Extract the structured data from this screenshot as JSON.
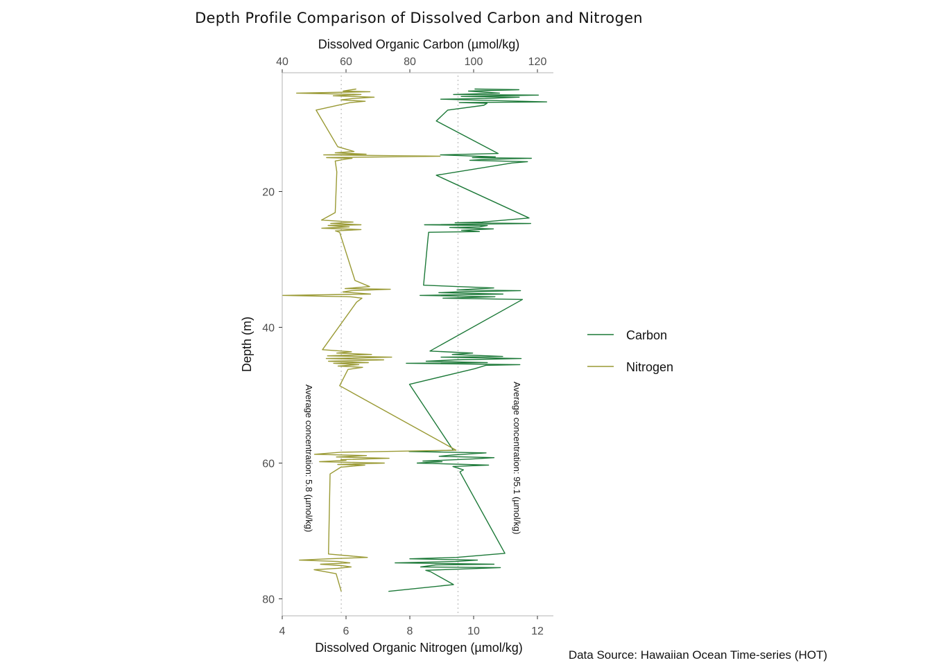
{
  "chart_data": {
    "type": "line",
    "title": "Depth Profile Comparison of Dissolved Carbon and Nitrogen",
    "ylabel": "Depth (m)",
    "xlabel_top": "Dissolved Organic Carbon (µmol/kg)",
    "xlabel_bottom": "Dissolved Organic Nitrogen (µmol/kg)",
    "caption": "Data Source: Hawaiian Ocean Time-series (HOT)",
    "y_reversed": true,
    "ylim": [
      2.5,
      82.5
    ],
    "yticks": [
      20,
      40,
      60,
      80
    ],
    "x_top_lim": [
      40,
      125
    ],
    "x_top_ticks": [
      40,
      60,
      80,
      100,
      120
    ],
    "x_bottom_lim": [
      4,
      12.5
    ],
    "x_bottom_ticks": [
      4,
      6,
      8,
      10,
      12
    ],
    "grid": false,
    "legend_position": "right",
    "series": [
      {
        "name": "Carbon",
        "axis": "top",
        "color": "#1b7837",
        "points": [
          [
            100.3,
            4.9
          ],
          [
            114.2,
            5.0
          ],
          [
            98.4,
            5.2
          ],
          [
            108.1,
            5.5
          ],
          [
            93.7,
            5.7
          ],
          [
            120.3,
            5.8
          ],
          [
            96.1,
            6.0
          ],
          [
            114.3,
            6.1
          ],
          [
            103.6,
            6.3
          ],
          [
            89.7,
            6.4
          ],
          [
            106.2,
            6.6
          ],
          [
            122.9,
            6.8
          ],
          [
            95.5,
            6.9
          ],
          [
            104.2,
            7.0
          ],
          [
            103.2,
            7.3
          ],
          [
            91.9,
            8.0
          ],
          [
            88.3,
            9.6
          ],
          [
            107.7,
            14.4
          ],
          [
            89.6,
            14.6
          ],
          [
            106.8,
            14.9
          ],
          [
            99.6,
            15.0
          ],
          [
            118.1,
            15.1
          ],
          [
            102.3,
            15.3
          ],
          [
            98.8,
            15.4
          ],
          [
            116.9,
            15.6
          ],
          [
            112.0,
            15.8
          ],
          [
            88.3,
            17.6
          ],
          [
            117.4,
            23.9
          ],
          [
            102.6,
            24.5
          ],
          [
            94.2,
            24.6
          ],
          [
            117.9,
            24.7
          ],
          [
            84.6,
            24.9
          ],
          [
            104.3,
            25.0
          ],
          [
            101.9,
            25.2
          ],
          [
            92.5,
            25.3
          ],
          [
            106.2,
            25.5
          ],
          [
            96.2,
            25.7
          ],
          [
            101.8,
            25.9
          ],
          [
            85.9,
            26.0
          ],
          [
            85.6,
            27.3
          ],
          [
            84.3,
            33.8
          ],
          [
            106.3,
            34.2
          ],
          [
            94.8,
            34.5
          ],
          [
            114.7,
            34.6
          ],
          [
            94.3,
            34.8
          ],
          [
            89.1,
            34.9
          ],
          [
            109.2,
            35.1
          ],
          [
            83.2,
            35.3
          ],
          [
            106.7,
            35.5
          ],
          [
            90.4,
            35.7
          ],
          [
            115.3,
            35.9
          ],
          [
            86.3,
            43.5
          ],
          [
            99.7,
            43.8
          ],
          [
            93.3,
            44.0
          ],
          [
            109.1,
            44.3
          ],
          [
            89.8,
            44.4
          ],
          [
            114.9,
            44.6
          ],
          [
            94.1,
            44.8
          ],
          [
            85.1,
            45.0
          ],
          [
            104.3,
            45.2
          ],
          [
            78.9,
            45.3
          ],
          [
            114.5,
            45.5
          ],
          [
            103.8,
            45.6
          ],
          [
            100.3,
            46.1
          ],
          [
            79.9,
            48.4
          ],
          [
            93.6,
            58.1
          ],
          [
            79.8,
            58.3
          ],
          [
            103.9,
            58.5
          ],
          [
            93.8,
            58.8
          ],
          [
            89.2,
            59.0
          ],
          [
            106.4,
            59.2
          ],
          [
            99.6,
            59.4
          ],
          [
            84.1,
            59.7
          ],
          [
            90.1,
            59.8
          ],
          [
            82.3,
            60.0
          ],
          [
            97.7,
            60.2
          ],
          [
            104.7,
            60.3
          ],
          [
            93.5,
            60.5
          ],
          [
            96.8,
            61.0
          ],
          [
            95.7,
            61.3
          ],
          [
            109.8,
            73.3
          ],
          [
            94.6,
            73.9
          ],
          [
            80.0,
            74.1
          ],
          [
            101.2,
            74.3
          ],
          [
            94.3,
            74.5
          ],
          [
            75.4,
            74.7
          ],
          [
            106.4,
            74.9
          ],
          [
            88.1,
            75.0
          ],
          [
            83.4,
            75.3
          ],
          [
            108.4,
            75.4
          ],
          [
            85.0,
            75.8
          ],
          [
            86.5,
            76.0
          ],
          [
            93.7,
            77.9
          ],
          [
            73.3,
            78.9
          ]
        ]
      },
      {
        "name": "Nitrogen",
        "axis": "bottom",
        "color": "#999933",
        "points": [
          [
            6.32,
            4.9
          ],
          [
            6.18,
            5.0
          ],
          [
            5.91,
            5.2
          ],
          [
            6.75,
            5.3
          ],
          [
            4.45,
            5.5
          ],
          [
            6.47,
            5.7
          ],
          [
            5.6,
            5.9
          ],
          [
            6.88,
            6.1
          ],
          [
            6.22,
            6.3
          ],
          [
            5.84,
            6.5
          ],
          [
            6.6,
            6.7
          ],
          [
            6.13,
            6.9
          ],
          [
            5.06,
            8.0
          ],
          [
            5.74,
            13.4
          ],
          [
            6.25,
            14.1
          ],
          [
            5.66,
            14.3
          ],
          [
            6.63,
            14.5
          ],
          [
            5.3,
            14.6
          ],
          [
            8.95,
            14.8
          ],
          [
            5.39,
            15.0
          ],
          [
            6.19,
            15.1
          ],
          [
            5.9,
            15.3
          ],
          [
            5.66,
            15.5
          ],
          [
            5.71,
            17.1
          ],
          [
            5.66,
            23.1
          ],
          [
            5.23,
            24.2
          ],
          [
            6.22,
            24.5
          ],
          [
            5.52,
            24.7
          ],
          [
            6.47,
            24.9
          ],
          [
            5.44,
            25.0
          ],
          [
            6.1,
            25.2
          ],
          [
            5.24,
            25.4
          ],
          [
            6.47,
            25.6
          ],
          [
            5.67,
            25.8
          ],
          [
            5.8,
            26.0
          ],
          [
            6.28,
            33.1
          ],
          [
            6.74,
            34.0
          ],
          [
            5.97,
            34.3
          ],
          [
            7.39,
            34.4
          ],
          [
            6.17,
            34.6
          ],
          [
            5.9,
            34.8
          ],
          [
            6.77,
            35.1
          ],
          [
            4.02,
            35.3
          ],
          [
            6.14,
            35.5
          ],
          [
            6.5,
            35.7
          ],
          [
            6.33,
            36.3
          ],
          [
            5.26,
            43.3
          ],
          [
            6.17,
            43.6
          ],
          [
            5.71,
            43.8
          ],
          [
            6.8,
            44.0
          ],
          [
            5.42,
            44.2
          ],
          [
            7.43,
            44.4
          ],
          [
            5.38,
            44.6
          ],
          [
            7.18,
            44.8
          ],
          [
            5.45,
            45.0
          ],
          [
            6.7,
            45.2
          ],
          [
            5.61,
            45.3
          ],
          [
            6.4,
            45.5
          ],
          [
            5.75,
            45.7
          ],
          [
            6.52,
            45.9
          ],
          [
            6.06,
            46.2
          ],
          [
            5.8,
            48.6
          ],
          [
            9.45,
            58.1
          ],
          [
            5.85,
            58.4
          ],
          [
            5.01,
            58.7
          ],
          [
            6.64,
            58.9
          ],
          [
            5.7,
            59.1
          ],
          [
            7.35,
            59.3
          ],
          [
            5.84,
            59.5
          ],
          [
            6.0,
            59.6
          ],
          [
            5.17,
            59.8
          ],
          [
            7.2,
            60.0
          ],
          [
            5.74,
            60.2
          ],
          [
            6.59,
            60.3
          ],
          [
            5.84,
            60.6
          ],
          [
            5.5,
            61.6
          ],
          [
            5.45,
            73.4
          ],
          [
            6.67,
            73.9
          ],
          [
            5.45,
            74.1
          ],
          [
            4.54,
            74.3
          ],
          [
            5.75,
            74.5
          ],
          [
            6.12,
            74.7
          ],
          [
            5.2,
            74.9
          ],
          [
            5.86,
            75.1
          ],
          [
            6.16,
            75.3
          ],
          [
            5.74,
            75.5
          ],
          [
            5.0,
            75.7
          ],
          [
            5.69,
            76.3
          ],
          [
            5.85,
            78.9
          ]
        ]
      }
    ],
    "reference_lines": [
      {
        "series": "Nitrogen",
        "axis": "bottom",
        "value": 5.85
      },
      {
        "series": "Carbon",
        "axis": "top",
        "value": 95.1
      }
    ],
    "annotations": [
      {
        "text": "Average concentration: 5.8 (µmol/kg)",
        "rotation": 90
      },
      {
        "text": "Average concentration: 95.1 (µmol/kg)",
        "rotation": 90
      }
    ]
  }
}
